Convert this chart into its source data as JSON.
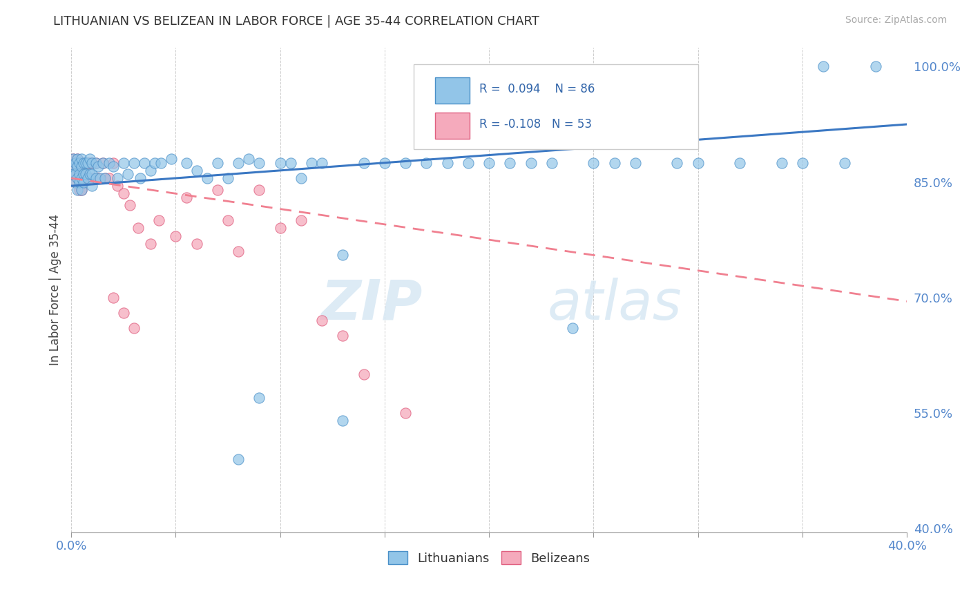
{
  "title": "LITHUANIAN VS BELIZEAN IN LABOR FORCE | AGE 35-44 CORRELATION CHART",
  "source_text": "Source: ZipAtlas.com",
  "ylabel": "In Labor Force | Age 35-44",
  "xlim": [
    0.0,
    0.4
  ],
  "ylim": [
    0.395,
    1.025
  ],
  "xticks": [
    0.0,
    0.05,
    0.1,
    0.15,
    0.2,
    0.25,
    0.3,
    0.35,
    0.4
  ],
  "yticks_right": [
    0.4,
    0.55,
    0.7,
    0.85,
    1.0
  ],
  "ytick_right_labels": [
    "40.0%",
    "55.0%",
    "70.0%",
    "85.0%",
    "100.0%"
  ],
  "R_blue": 0.094,
  "N_blue": 86,
  "R_pink": -0.108,
  "N_pink": 53,
  "blue_color": "#92C5E8",
  "blue_edge_color": "#4A90C8",
  "pink_color": "#F5AABC",
  "pink_edge_color": "#E06080",
  "blue_line_color": "#3B78C3",
  "pink_line_color": "#F08090",
  "legend_label_blue": "Lithuanians",
  "legend_label_pink": "Belizeans",
  "watermark": "ZIPatlas",
  "background_color": "#ffffff",
  "grid_color": "#c8c8c8",
  "blue_scatter_x": [
    0.001,
    0.001,
    0.001,
    0.002,
    0.002,
    0.002,
    0.003,
    0.003,
    0.003,
    0.003,
    0.004,
    0.004,
    0.004,
    0.005,
    0.005,
    0.005,
    0.005,
    0.006,
    0.006,
    0.006,
    0.007,
    0.007,
    0.008,
    0.008,
    0.009,
    0.009,
    0.01,
    0.01,
    0.01,
    0.012,
    0.012,
    0.013,
    0.014,
    0.015,
    0.016,
    0.018,
    0.02,
    0.022,
    0.025,
    0.027,
    0.03,
    0.033,
    0.035,
    0.038,
    0.04,
    0.043,
    0.048,
    0.055,
    0.06,
    0.065,
    0.07,
    0.075,
    0.08,
    0.085,
    0.09,
    0.1,
    0.105,
    0.11,
    0.115,
    0.12,
    0.13,
    0.14,
    0.15,
    0.16,
    0.17,
    0.18,
    0.19,
    0.2,
    0.21,
    0.22,
    0.23,
    0.25,
    0.27,
    0.3,
    0.32,
    0.35,
    0.37,
    0.385,
    0.36,
    0.34,
    0.29,
    0.26,
    0.24,
    0.13,
    0.09,
    0.08
  ],
  "blue_scatter_y": [
    0.87,
    0.86,
    0.88,
    0.85,
    0.875,
    0.86,
    0.87,
    0.88,
    0.855,
    0.84,
    0.875,
    0.86,
    0.85,
    0.88,
    0.87,
    0.855,
    0.84,
    0.875,
    0.86,
    0.85,
    0.875,
    0.86,
    0.875,
    0.855,
    0.88,
    0.86,
    0.875,
    0.86,
    0.845,
    0.875,
    0.855,
    0.87,
    0.855,
    0.875,
    0.855,
    0.875,
    0.87,
    0.855,
    0.875,
    0.86,
    0.875,
    0.855,
    0.875,
    0.865,
    0.875,
    0.875,
    0.88,
    0.875,
    0.865,
    0.855,
    0.875,
    0.855,
    0.875,
    0.88,
    0.875,
    0.875,
    0.875,
    0.855,
    0.875,
    0.875,
    0.755,
    0.875,
    0.875,
    0.875,
    0.875,
    0.875,
    0.875,
    0.875,
    0.875,
    0.875,
    0.875,
    0.875,
    0.875,
    0.875,
    0.875,
    0.875,
    0.875,
    1.0,
    1.0,
    0.875,
    0.875,
    0.875,
    0.66,
    0.54,
    0.57,
    0.49
  ],
  "pink_scatter_x": [
    0.001,
    0.001,
    0.001,
    0.002,
    0.002,
    0.002,
    0.003,
    0.003,
    0.003,
    0.004,
    0.004,
    0.004,
    0.005,
    0.005,
    0.005,
    0.006,
    0.006,
    0.007,
    0.007,
    0.008,
    0.008,
    0.009,
    0.009,
    0.01,
    0.01,
    0.012,
    0.013,
    0.015,
    0.016,
    0.018,
    0.02,
    0.022,
    0.025,
    0.028,
    0.032,
    0.038,
    0.042,
    0.05,
    0.055,
    0.06,
    0.07,
    0.075,
    0.08,
    0.09,
    0.1,
    0.11,
    0.12,
    0.13,
    0.14,
    0.16,
    0.02,
    0.025,
    0.03
  ],
  "pink_scatter_y": [
    0.88,
    0.87,
    0.86,
    0.875,
    0.86,
    0.85,
    0.88,
    0.87,
    0.855,
    0.875,
    0.86,
    0.84,
    0.875,
    0.86,
    0.84,
    0.875,
    0.855,
    0.875,
    0.855,
    0.875,
    0.855,
    0.875,
    0.855,
    0.875,
    0.855,
    0.875,
    0.855,
    0.875,
    0.855,
    0.855,
    0.875,
    0.845,
    0.835,
    0.82,
    0.79,
    0.77,
    0.8,
    0.78,
    0.83,
    0.77,
    0.84,
    0.8,
    0.76,
    0.84,
    0.79,
    0.8,
    0.67,
    0.65,
    0.6,
    0.55,
    0.7,
    0.68,
    0.66
  ],
  "blue_trend_x": [
    0.0,
    0.4
  ],
  "blue_trend_y": [
    0.845,
    0.925
  ],
  "pink_trend_x": [
    0.0,
    0.4
  ],
  "pink_trend_y": [
    0.855,
    0.695
  ]
}
